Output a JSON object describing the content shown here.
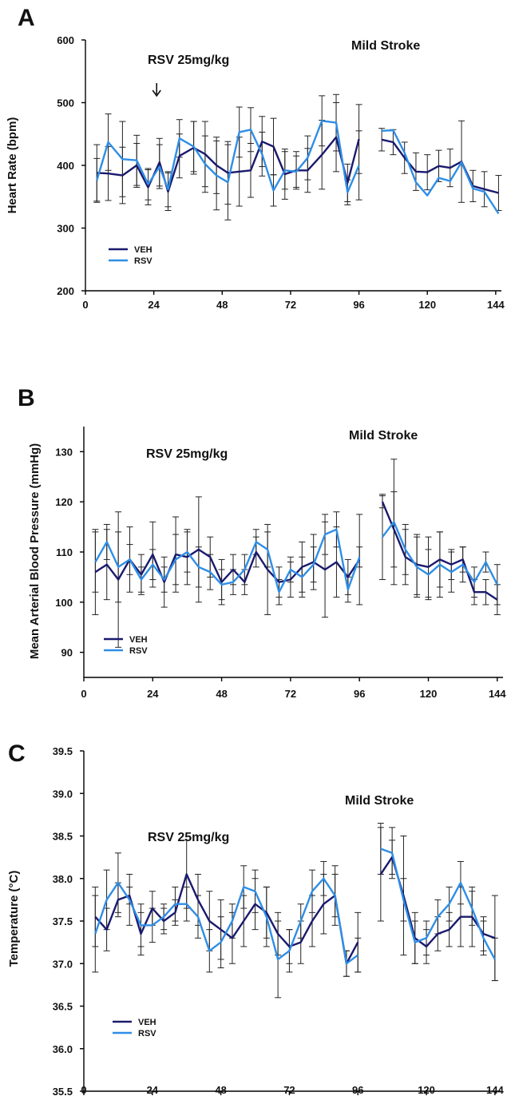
{
  "chart_data": [
    {
      "panel_label": "A",
      "type": "line",
      "ylabel": "Heart Rate (bpm)",
      "ylim": [
        200,
        600
      ],
      "yticks": [
        200,
        300,
        400,
        500,
        600
      ],
      "xlim": [
        0,
        146
      ],
      "xticks": [
        0,
        24,
        48,
        72,
        96,
        120,
        144
      ],
      "annotations": [
        "RSV 25mg/kg",
        "Mild Stroke"
      ],
      "arrow_at_x": 25,
      "legend": [
        "VEH",
        "RSV"
      ],
      "colors": {
        "VEH": "#1a1a6e",
        "RSV": "#2f8ee6"
      },
      "series": [
        {
          "name": "VEH",
          "segments": [
            {
              "x": [
                4,
                8,
                13,
                18,
                22,
                26,
                29,
                33,
                38,
                42,
                46,
                50,
                54,
                58,
                62,
                66,
                70,
                74,
                78,
                83,
                88,
                92,
                96
              ],
              "y": [
                388,
                387,
                384,
                400,
                365,
                405,
                358,
                415,
                428,
                418,
                400,
                388,
                390,
                392,
                438,
                430,
                386,
                392,
                392,
                417,
                445,
                372,
                442
              ],
              "err": [
                45,
                43,
                45,
                35,
                28,
                38,
                30,
                35,
                42,
                52,
                45,
                50,
                55,
                43,
                40,
                45,
                40,
                30,
                35,
                55,
                55,
                30,
                55
              ]
            },
            {
              "x": [
                104,
                108,
                112,
                116,
                120,
                124,
                128,
                132,
                136,
                140,
                145
              ],
              "y": [
                441,
                437,
                412,
                390,
                389,
                399,
                396,
                406,
                367,
                362,
                356
              ],
              "err": [
                18,
                20,
                25,
                30,
                28,
                25,
                30,
                65,
                25,
                28,
                28
              ]
            }
          ]
        },
        {
          "name": "RSV",
          "segments": [
            {
              "x": [
                4,
                8,
                13,
                18,
                22,
                26,
                29,
                33,
                38,
                42,
                46,
                50,
                54,
                58,
                62,
                66,
                70,
                74,
                78,
                83,
                88,
                92,
                96
              ],
              "y": [
                376,
                437,
                410,
                408,
                370,
                398,
                362,
                443,
                430,
                402,
                384,
                373,
                453,
                457,
                418,
                360,
                392,
                390,
                412,
                471,
                468,
                357,
                400
              ],
              "err": [
                35,
                45,
                60,
                40,
                25,
                35,
                28,
                30,
                40,
                45,
                55,
                60,
                40,
                35,
                35,
                25,
                30,
                25,
                35,
                40,
                45,
                20,
                55
              ]
            },
            {
              "x": [
                104,
                108,
                112,
                116,
                120,
                124,
                128,
                132,
                136,
                140,
                145
              ],
              "y": [
                455,
                456,
                420,
                373,
                352,
                380,
                375,
                405,
                363,
                358,
                323
              ]
            },
            {
              "x": [],
              "y": []
            }
          ]
        }
      ]
    },
    {
      "panel_label": "B",
      "type": "line",
      "ylabel": "Mean Arterial Blood Pressure (mmHg)",
      "ylim": [
        85,
        135
      ],
      "yticks": [
        90,
        100,
        110,
        120,
        130
      ],
      "xlim": [
        0,
        146
      ],
      "xticks": [
        0,
        24,
        48,
        72,
        96,
        120,
        144
      ],
      "annotations": [
        "RSV 25mg/kg",
        "Mild Stroke"
      ],
      "legend": [
        "VEH",
        "RSV"
      ],
      "colors": {
        "VEH": "#1a1a6e",
        "RSV": "#2f8ee6"
      },
      "series": [
        {
          "name": "VEH",
          "segments": [
            {
              "x": [
                4,
                8,
                12,
                16,
                20,
                24,
                28,
                32,
                36,
                40,
                44,
                48,
                52,
                56,
                60,
                64,
                68,
                72,
                76,
                80,
                84,
                88,
                92,
                96
              ],
              "y": [
                106,
                107.5,
                104.5,
                108.5,
                105.5,
                109.5,
                104,
                109.5,
                109,
                110.5,
                109,
                104,
                106.5,
                104,
                110,
                106.5,
                104,
                104.5,
                107,
                108,
                106.5,
                108,
                105,
                108.5
              ],
              "err": [
                8.5,
                7,
                13.5,
                6.5,
                4,
                6.5,
                5,
                7.5,
                5.5,
                10.5,
                4,
                4.5,
                3,
                2.5,
                3,
                9,
                3,
                3.5,
                5,
                5.5,
                9.5,
                7,
                3.5,
                9
              ]
            },
            {
              "x": [
                104,
                108,
                112,
                116,
                120,
                124,
                128,
                132,
                136,
                140,
                144
              ],
              "y": [
                120,
                114.5,
                109,
                107.5,
                107,
                108.5,
                107.5,
                108.5,
                102,
                102,
                100.5
              ],
              "err": [
                1.2,
                7.5,
                5.5,
                6,
                6,
                5.5,
                3,
                2.5,
                2.5,
                2.5,
                3
              ]
            }
          ]
        },
        {
          "name": "RSV",
          "segments": [
            {
              "x": [
                4,
                8,
                12,
                16,
                20,
                24,
                28,
                32,
                36,
                40,
                44,
                48,
                52,
                56,
                60,
                64,
                68,
                72,
                76,
                80,
                84,
                88,
                92,
                96
              ],
              "y": [
                108,
                112,
                107,
                108.5,
                104.5,
                107.5,
                104.5,
                108.5,
                110,
                107,
                106,
                103.5,
                104,
                106.5,
                112,
                110.5,
                102,
                106.5,
                105,
                107.5,
                113.5,
                114.5,
                102.5,
                109
              ],
              "err": [
                6,
                3.5,
                7,
                3,
                2.5,
                3,
                2.5,
                5,
                4,
                4,
                3.5,
                3,
                2.5,
                3,
                2.5,
                3.5,
                2.5,
                2.5,
                4,
                3.5,
                4,
                3.5,
                2.5,
                2
              ]
            },
            {
              "x": [
                104,
                108,
                112,
                116,
                120,
                124,
                128,
                132,
                136,
                140,
                144
              ],
              "y": [
                113,
                116,
                110.5,
                107,
                105.5,
                107.5,
                106,
                107.5,
                104,
                108,
                103.5
              ],
              "err": [
                8.5,
                12.5,
                5,
                6,
                5,
                6.5,
                4,
                3.5,
                3,
                2,
                4
              ]
            }
          ]
        }
      ]
    },
    {
      "panel_label": "C",
      "type": "line",
      "ylabel": "Temperature (°C)",
      "ylim": [
        35.5,
        39.5
      ],
      "yticks": [
        35.5,
        36.0,
        36.5,
        37.0,
        37.5,
        38.0,
        38.5,
        39.0,
        39.5
      ],
      "xlim": [
        0,
        146
      ],
      "xticks": [
        0,
        24,
        48,
        72,
        96,
        120,
        144
      ],
      "annotations": [
        "RSV 25mg/kg",
        "Mild Stroke"
      ],
      "legend": [
        "VEH",
        "RSV"
      ],
      "colors": {
        "VEH": "#1a1a6e",
        "RSV": "#2f8ee6"
      },
      "series": [
        {
          "name": "VEH",
          "segments": [
            {
              "x": [
                4,
                8,
                12,
                16,
                20,
                24,
                28,
                32,
                36,
                40,
                44,
                48,
                52,
                56,
                60,
                64,
                68,
                72,
                76,
                80,
                84,
                88,
                92,
                96
              ],
              "y": [
                37.55,
                37.4,
                37.75,
                37.8,
                37.35,
                37.65,
                37.5,
                37.6,
                38.05,
                37.75,
                37.5,
                37.4,
                37.3,
                37.5,
                37.7,
                37.6,
                37.35,
                37.2,
                37.25,
                37.5,
                37.7,
                37.8,
                37.0,
                37.25
              ],
              "err": [
                0.35,
                0.25,
                0.2,
                0.1,
                0.25,
                0.2,
                0.15,
                0.15,
                0.4,
                0.3,
                0.35,
                0.35,
                0.3,
                0.3,
                0.3,
                0.3,
                0.25,
                0.2,
                0.25,
                0.3,
                0.35,
                0.35,
                0.15,
                0.35
              ]
            },
            {
              "x": [
                104,
                108,
                112,
                116,
                120,
                124,
                128,
                132,
                136,
                140,
                144
              ],
              "y": [
                38.05,
                38.25,
                37.8,
                37.3,
                37.2,
                37.35,
                37.4,
                37.55,
                37.55,
                37.35,
                37.3
              ],
              "err": [
                0.55,
                0.2,
                0.7,
                0.3,
                0.2,
                0.2,
                0.2,
                0.35,
                0.35,
                0.2,
                0.5
              ]
            }
          ]
        },
        {
          "name": "RSV",
          "segments": [
            {
              "x": [
                4,
                8,
                12,
                16,
                20,
                24,
                28,
                32,
                36,
                40,
                44,
                48,
                52,
                56,
                60,
                64,
                68,
                72,
                76,
                80,
                84,
                88,
                92,
                96
              ],
              "y": [
                37.35,
                37.75,
                37.95,
                37.75,
                37.45,
                37.45,
                37.55,
                37.7,
                37.7,
                37.55,
                37.15,
                37.25,
                37.5,
                37.9,
                37.85,
                37.55,
                37.05,
                37.15,
                37.5,
                37.85,
                38.0,
                37.8,
                37.0,
                37.1
              ],
              "err": [
                0.45,
                0.35,
                0.35,
                0.3,
                0.25,
                0.2,
                0.15,
                0.2,
                0.2,
                0.25,
                0.25,
                0.3,
                0.2,
                0.25,
                0.25,
                0.35,
                0.45,
                0.25,
                0.2,
                0.25,
                0.2,
                0.25,
                0.15,
                0.2
              ]
            },
            {
              "x": [
                104,
                108,
                112,
                116,
                120,
                124,
                128,
                132,
                136,
                140,
                144
              ],
              "y": [
                38.35,
                38.3,
                37.75,
                37.25,
                37.3,
                37.55,
                37.7,
                37.95,
                37.65,
                37.3,
                37.05
              ],
              "err": [
                0.3,
                0.3,
                0.25,
                0.25,
                0.2,
                0.2,
                0.2,
                0.25,
                0.2,
                0.2,
                0.25
              ]
            }
          ]
        }
      ]
    }
  ]
}
